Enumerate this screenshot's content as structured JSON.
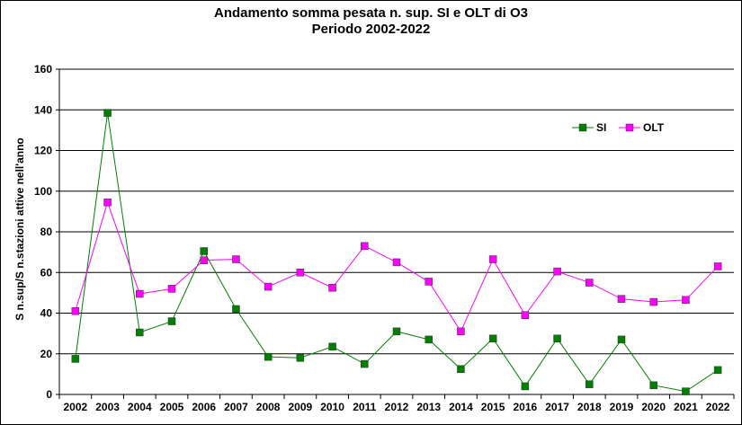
{
  "chart_data": {
    "type": "line",
    "title_line1": "Andamento somma pesata n. sup. SI e OLT di O3",
    "title_line2": "Periodo 2002-2022",
    "xlabel": "",
    "ylabel": "S n.sup/S n.stazioni attive nell'anno",
    "ylim": [
      0,
      160
    ],
    "yticks": [
      0,
      20,
      40,
      60,
      80,
      100,
      120,
      140,
      160
    ],
    "grid": true,
    "legend_position": "top-right",
    "categories": [
      "2002",
      "2003",
      "2004",
      "2005",
      "2006",
      "2007",
      "2008",
      "2009",
      "2010",
      "2011",
      "2012",
      "2013",
      "2014",
      "2015",
      "2016",
      "2017",
      "2018",
      "2019",
      "2020",
      "2021",
      "2022"
    ],
    "series": [
      {
        "name": "SI",
        "color": "#008000",
        "marker_color": "#008000",
        "values": [
          17.5,
          138.5,
          30.5,
          36,
          70.5,
          42,
          18.5,
          18,
          23.5,
          15,
          31,
          27,
          12.5,
          27.5,
          4,
          27.5,
          5,
          27,
          4.5,
          1.5,
          12
        ]
      },
      {
        "name": "OLT",
        "color": "#ff00ff",
        "marker_color": "#ff00ff",
        "values": [
          41,
          94.5,
          49.5,
          52,
          66,
          66.5,
          53,
          60,
          52.5,
          73,
          65,
          55.5,
          31,
          66.5,
          39,
          60.5,
          55,
          47,
          45.5,
          46.5,
          63
        ]
      }
    ]
  }
}
